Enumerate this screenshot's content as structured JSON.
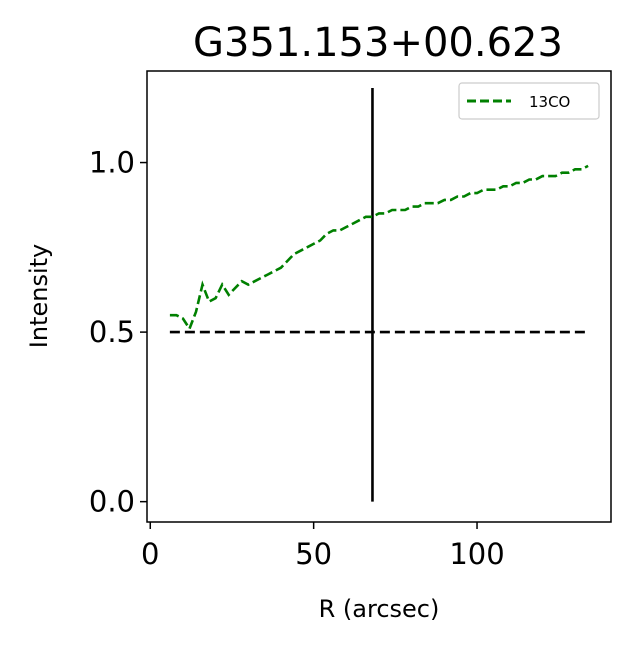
{
  "chart_data": {
    "type": "line",
    "title": "G351.153+00.623",
    "xlabel": "R (arcsec)",
    "ylabel": "Intensity",
    "xlim": [
      -1,
      141
    ],
    "ylim": [
      -0.06,
      1.27
    ],
    "xticks": [
      0,
      50,
      100
    ],
    "xtick_labels": [
      "0",
      "50",
      "100"
    ],
    "yticks": [
      0.0,
      0.5,
      1.0
    ],
    "ytick_labels": [
      "0.0",
      "0.5",
      "1.0"
    ],
    "grid": false,
    "legend": {
      "placement": "top-right",
      "entries": [
        "13CO"
      ]
    },
    "series": [
      {
        "name": "13CO",
        "color": "#008000",
        "style": "dashed",
        "x": [
          6,
          8,
          10,
          12,
          14,
          16,
          18,
          20,
          22,
          24,
          26,
          28,
          30,
          32,
          34,
          36,
          38,
          40,
          42,
          44,
          46,
          48,
          50,
          52,
          54,
          56,
          58,
          60,
          62,
          64,
          66,
          68,
          70,
          72,
          74,
          76,
          78,
          80,
          82,
          84,
          86,
          88,
          90,
          92,
          94,
          96,
          98,
          100,
          102,
          104,
          106,
          108,
          110,
          112,
          114,
          116,
          118,
          120,
          122,
          124,
          126,
          128,
          130,
          132,
          134
        ],
        "y": [
          0.55,
          0.55,
          0.54,
          0.51,
          0.56,
          0.64,
          0.59,
          0.6,
          0.64,
          0.61,
          0.63,
          0.65,
          0.64,
          0.65,
          0.66,
          0.67,
          0.68,
          0.69,
          0.71,
          0.73,
          0.74,
          0.75,
          0.76,
          0.77,
          0.79,
          0.8,
          0.8,
          0.81,
          0.82,
          0.83,
          0.84,
          0.84,
          0.85,
          0.85,
          0.86,
          0.86,
          0.86,
          0.87,
          0.87,
          0.88,
          0.88,
          0.88,
          0.89,
          0.89,
          0.9,
          0.9,
          0.91,
          0.91,
          0.92,
          0.92,
          0.92,
          0.93,
          0.93,
          0.94,
          0.94,
          0.95,
          0.95,
          0.96,
          0.96,
          0.96,
          0.97,
          0.97,
          0.98,
          0.98,
          0.99
        ]
      }
    ],
    "reference_lines": [
      {
        "orientation": "horizontal",
        "y": 0.5,
        "x_from": 6,
        "x_to": 134,
        "color": "#000000",
        "style": "dashed"
      },
      {
        "orientation": "vertical",
        "x": 68,
        "y_from": 0.0,
        "y_to": 1.22,
        "color": "#000000",
        "style": "solid"
      }
    ]
  }
}
